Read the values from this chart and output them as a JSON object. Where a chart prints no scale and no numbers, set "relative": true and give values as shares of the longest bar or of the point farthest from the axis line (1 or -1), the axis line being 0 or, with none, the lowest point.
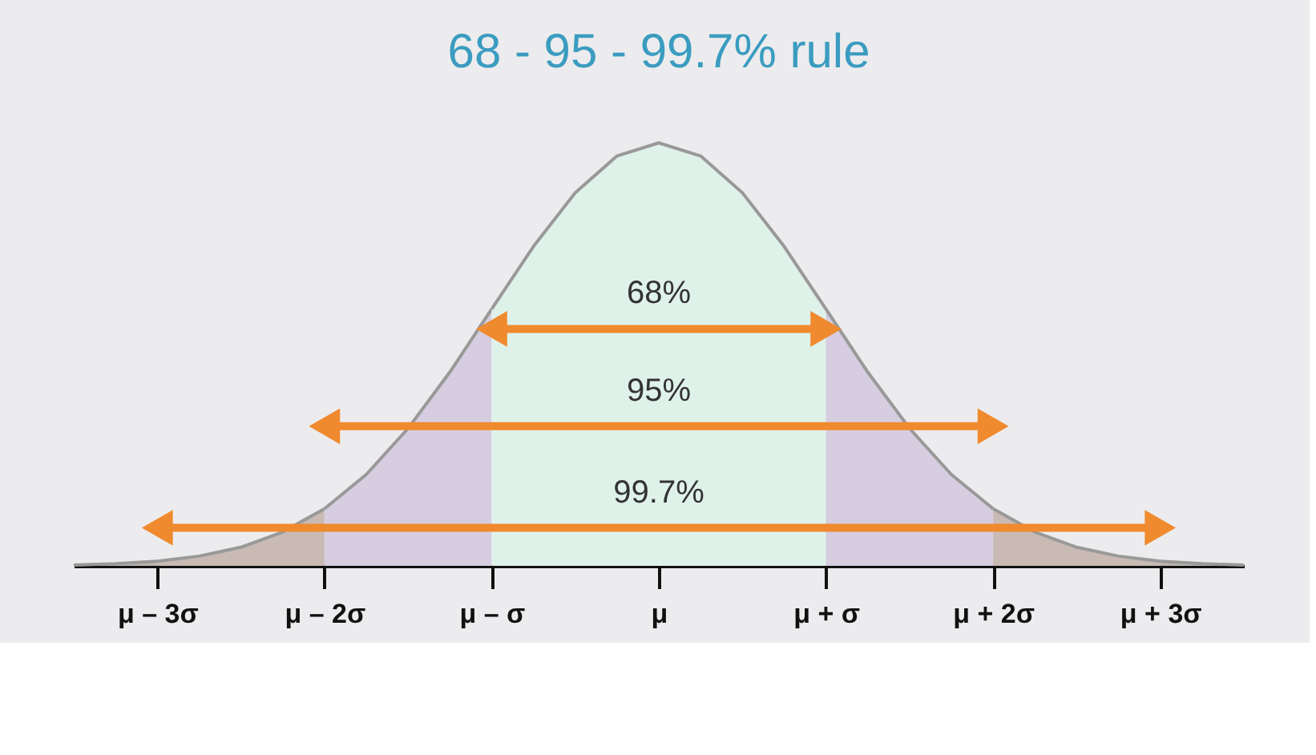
{
  "chart_data": {
    "type": "area",
    "title": "68 - 95 - 99.7% rule",
    "relative": true,
    "series": [
      {
        "color": "#bdb6b1",
        "x": [
          -3.5,
          -3.25,
          -3
        ],
        "values": [
          0.002,
          0.005,
          0.011
        ]
      },
      {
        "color": "#c9bbb4",
        "x": [
          -3,
          -2.75,
          -2.5,
          -2.25,
          -2
        ],
        "values": [
          0.011,
          0.023,
          0.044,
          0.08,
          0.135
        ]
      },
      {
        "color": "#d6cde0",
        "x": [
          -2,
          -1.75,
          -1.5,
          -1.25,
          -1
        ],
        "values": [
          0.135,
          0.216,
          0.325,
          0.458,
          0.607
        ]
      },
      {
        "color": "#dff2ea",
        "x": [
          -1,
          -0.75,
          -0.5,
          -0.25,
          0,
          0.25,
          0.5,
          0.75,
          1
        ],
        "values": [
          0.607,
          0.755,
          0.882,
          0.969,
          1,
          0.969,
          0.882,
          0.755,
          0.607
        ]
      },
      {
        "color": "#d6cde0",
        "x": [
          1,
          1.25,
          1.5,
          1.75,
          2
        ],
        "values": [
          0.607,
          0.458,
          0.325,
          0.216,
          0.135
        ]
      },
      {
        "color": "#c9bbb4",
        "x": [
          2,
          2.25,
          2.5,
          2.75,
          3
        ],
        "values": [
          0.135,
          0.08,
          0.044,
          0.023,
          0.011
        ]
      },
      {
        "color": "#bdb6b1",
        "x": [
          3,
          3.25,
          3.5
        ],
        "values": [
          0.011,
          0.005,
          0.002
        ]
      },
      {
        "type": "line",
        "color": "#f08a2e",
        "marker": "triangle",
        "x": [
          -1,
          1
        ],
        "values": [
          0.56,
          0.56
        ]
      },
      {
        "type": "line",
        "color": "#f08a2e",
        "marker": "triangle",
        "x": [
          -2,
          2
        ],
        "values": [
          0.33,
          0.33
        ]
      },
      {
        "type": "line",
        "color": "#f08a2e",
        "marker": "triangle",
        "x": [
          -3,
          3
        ],
        "values": [
          0.09,
          0.09
        ]
      }
    ],
    "annotations": [
      "68%",
      "95%",
      "99.7%"
    ],
    "xlim": [
      -3.5,
      3.5
    ],
    "xticks": [
      {
        "value": -3,
        "label": "μ – 3σ"
      },
      {
        "value": -2,
        "label": "μ – 2σ"
      },
      {
        "value": -1,
        "label": "μ – σ"
      },
      {
        "value": 0,
        "label": "μ"
      },
      {
        "value": 1,
        "label": "μ + σ"
      },
      {
        "value": 2,
        "label": "μ + 2σ"
      },
      {
        "value": 3,
        "label": "μ + 3σ"
      }
    ],
    "tick_labels": "x",
    "grid": false
  }
}
